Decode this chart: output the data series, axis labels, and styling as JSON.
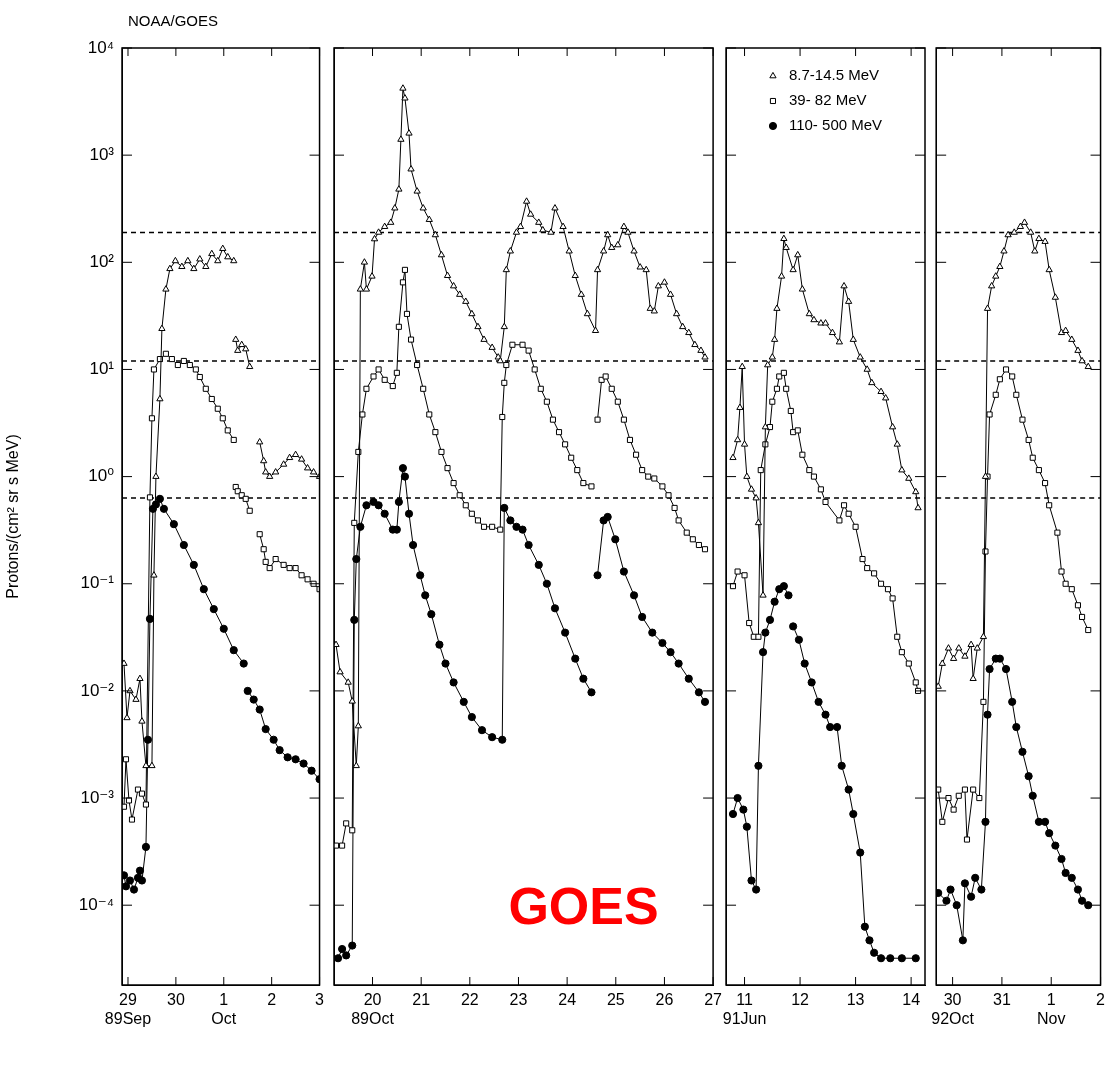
{
  "chart_data": [
    {
      "type": "line",
      "title": "NOAA/GOES",
      "ylabel": "Protons/(cm² sr s MeV)",
      "log": "y",
      "grid": false,
      "legend": false,
      "xlim": [
        "1989-09-28T21:00",
        "1989-10-03T00:00"
      ],
      "xticks": [
        {
          "value": "1989-09-29",
          "label": "29\n89Sep"
        },
        {
          "value": "1989-09-30",
          "label": "30"
        },
        {
          "value": "1989-10-01",
          "label": "1\nOct"
        },
        {
          "value": "1989-10-02",
          "label": "2"
        },
        {
          "value": "1989-10-03",
          "label": "3"
        }
      ],
      "ylim": [
        1.8e-05,
        10000
      ],
      "yticks": [
        {
          "value": 0.0001,
          "label": "10⁻⁴"
        },
        {
          "value": 0.001,
          "label": "10⁻³"
        },
        {
          "value": 0.01,
          "label": "10⁻²"
        },
        {
          "value": 0.1,
          "label": "10⁻¹"
        },
        {
          "value": 1,
          "label": "10⁰"
        },
        {
          "value": 10,
          "label": "10¹"
        },
        {
          "value": 100,
          "label": "10²"
        },
        {
          "value": 1000,
          "label": "10³"
        },
        {
          "value": 10000,
          "label": "10⁴"
        }
      ],
      "ref_lines": [
        {
          "axis": "y",
          "value": 190,
          "line_style": "dashed"
        },
        {
          "axis": "y",
          "value": 12,
          "line_style": "dashed"
        },
        {
          "axis": "y",
          "value": 0.63,
          "line_style": "dashed"
        }
      ],
      "series": [
        {
          "color": "#000000",
          "marker": "triangle",
          "x": [
            "1989-09-28T22:00",
            "1989-09-28T23:30",
            "1989-09-29T01:00",
            "1989-09-29T04:00",
            "1989-09-29T06:00",
            "1989-09-29T07:00",
            "1989-09-29T09:00",
            "1989-09-29T12:00",
            "1989-09-29T13:00",
            "1989-09-29T14:00",
            "1989-09-29T16:00",
            "1989-09-29T17:00",
            "1989-09-29T19:00",
            "1989-09-29T21:00",
            "1989-09-29T23:45",
            "1989-09-30T03:00",
            "1989-09-30T06:00",
            "1989-09-30T09:00",
            "1989-09-30T12:00",
            "1989-09-30T15:00",
            "1989-09-30T18:00",
            "1989-09-30T21:00",
            "1989-09-30T23:30",
            "1989-10-01T02:00",
            "1989-10-01T05:00",
            "1989-10-01T05:30",
            "1989-10-01T06:00",
            "1989-10-01T07:00",
            "1989-10-01T09:00",
            "1989-10-01T11:00",
            "1989-10-01T13:00",
            "1989-10-01T16:00",
            "1989-10-01T18:00",
            "1989-10-01T20:00",
            "1989-10-01T21:00",
            "1989-10-01T23:00",
            "1989-10-02T02:00",
            "1989-10-02T06:00",
            "1989-10-02T09:00",
            "1989-10-02T12:00",
            "1989-10-02T15:00",
            "1989-10-02T18:00",
            "1989-10-02T21:00",
            "1989-10-03T00:00"
          ],
          "values": [
            0.018,
            0.0056,
            0.01,
            0.0083,
            0.013,
            0.0052,
            0.002,
            0.002,
            0.12,
            1.0,
            5.3,
            24,
            56,
            87,
            103,
            91,
            103,
            87,
            107,
            91,
            120,
            103,
            134,
            112,
            103,
            null,
            19,
            15,
            17,
            15.5,
            10.6,
            null,
            2.1,
            1.4,
            1.1,
            1.0,
            1.1,
            1.3,
            1.5,
            1.6,
            1.45,
            1.2,
            1.1,
            1.0
          ]
        },
        {
          "color": "#000000",
          "marker": "square",
          "x": [
            "1989-09-28T22:00",
            "1989-09-28T23:00",
            "1989-09-29T00:30",
            "1989-09-29T02:00",
            "1989-09-29T05:00",
            "1989-09-29T07:00",
            "1989-09-29T09:00",
            "1989-09-29T11:00",
            "1989-09-29T12:00",
            "1989-09-29T13:00",
            "1989-09-29T16:00",
            "1989-09-29T19:00",
            "1989-09-29T22:00",
            "1989-09-30T01:00",
            "1989-09-30T04:00",
            "1989-09-30T07:00",
            "1989-09-30T10:00",
            "1989-09-30T12:00",
            "1989-09-30T15:00",
            "1989-09-30T18:00",
            "1989-09-30T21:00",
            "1989-09-30T23:30",
            "1989-10-01T02:00",
            "1989-10-01T05:00",
            "1989-10-01T05:30",
            "1989-10-01T06:00",
            "1989-10-01T07:00",
            "1989-10-01T09:00",
            "1989-10-01T11:00",
            "1989-10-01T13:00",
            "1989-10-01T16:00",
            "1989-10-01T18:00",
            "1989-10-01T20:00",
            "1989-10-01T21:00",
            "1989-10-01T23:00",
            "1989-10-02T02:00",
            "1989-10-02T06:00",
            "1989-10-02T09:00",
            "1989-10-02T12:00",
            "1989-10-02T15:00",
            "1989-10-02T18:00",
            "1989-10-02T21:00",
            "1989-10-03T00:00"
          ],
          "values": [
            0.00083,
            0.0023,
            0.00095,
            0.00063,
            0.0012,
            0.0011,
            0.00087,
            0.64,
            3.5,
            10,
            12.5,
            14,
            12.5,
            11,
            12,
            11,
            10,
            8.5,
            6.6,
            5.3,
            4.3,
            3.5,
            2.7,
            2.2,
            null,
            0.8,
            0.73,
            0.67,
            0.62,
            0.48,
            null,
            0.29,
            0.21,
            0.16,
            0.14,
            0.17,
            0.15,
            0.14,
            0.14,
            0.12,
            0.11,
            0.1,
            0.089
          ]
        },
        {
          "color": "#000000",
          "marker": "circle",
          "x": [
            "1989-09-28T22:00",
            "1989-09-28T23:00",
            "1989-09-29T01:00",
            "1989-09-29T03:00",
            "1989-09-29T05:00",
            "1989-09-29T06:00",
            "1989-09-29T07:00",
            "1989-09-29T09:00",
            "1989-09-29T10:00",
            "1989-09-29T11:00",
            "1989-09-29T12:30",
            "1989-09-29T14:00",
            "1989-09-29T16:00",
            "1989-09-29T18:00",
            "1989-09-29T23:00",
            "1989-09-30T04:00",
            "1989-09-30T09:00",
            "1989-09-30T14:00",
            "1989-09-30T19:00",
            "1989-10-01T00:00",
            "1989-10-01T05:00",
            "1989-10-01T10:00",
            "1989-10-01T11:00",
            "1989-10-01T12:00",
            "1989-10-01T15:00",
            "1989-10-01T18:00",
            "1989-10-01T21:00",
            "1989-10-02T01:00",
            "1989-10-02T04:00",
            "1989-10-02T08:00",
            "1989-10-02T12:00",
            "1989-10-02T16:00",
            "1989-10-02T20:00",
            "1989-10-03T00:00"
          ],
          "values": [
            0.00019,
            0.00015,
            0.00017,
            0.00014,
            0.00018,
            0.00021,
            0.00017,
            0.00035,
            0.0035,
            0.047,
            0.5,
            0.55,
            0.62,
            0.5,
            0.36,
            0.23,
            0.15,
            0.089,
            0.058,
            0.038,
            0.024,
            0.018,
            null,
            0.01,
            0.0083,
            0.0067,
            0.0044,
            0.0035,
            0.0028,
            0.0024,
            0.0023,
            0.0021,
            0.0018,
            0.0015
          ]
        }
      ]
    },
    {
      "type": "line",
      "log": "y",
      "grid": false,
      "legend": false,
      "tick_labels": "x",
      "annotations": [
        "GOES"
      ],
      "xlim": [
        "1989-10-19T05:00",
        "1989-10-27T00:00"
      ],
      "xticks": [
        {
          "value": "1989-10-20",
          "label": "20\n89Oct"
        },
        {
          "value": "1989-10-21",
          "label": "21"
        },
        {
          "value": "1989-10-22",
          "label": "22"
        },
        {
          "value": "1989-10-23",
          "label": "23"
        },
        {
          "value": "1989-10-24",
          "label": "24"
        },
        {
          "value": "1989-10-25",
          "label": "25"
        },
        {
          "value": "1989-10-26",
          "label": "26"
        },
        {
          "value": "1989-10-27",
          "label": "27"
        }
      ],
      "ylim": [
        1.8e-05,
        10000
      ],
      "yticks": [
        {
          "value": 0.0001,
          "label": null
        },
        {
          "value": 0.001,
          "label": null
        },
        {
          "value": 0.01,
          "label": null
        },
        {
          "value": 0.1,
          "label": null
        },
        {
          "value": 1,
          "label": null
        },
        {
          "value": 10,
          "label": null
        },
        {
          "value": 100,
          "label": null
        },
        {
          "value": 1000,
          "label": null
        },
        {
          "value": 10000,
          "label": null
        }
      ],
      "ref_lines": [
        {
          "axis": "y",
          "value": 190,
          "line_style": "dashed"
        },
        {
          "axis": "y",
          "value": 12,
          "line_style": "dashed"
        },
        {
          "axis": "y",
          "value": 0.63,
          "line_style": "dashed"
        }
      ],
      "series": [
        {
          "color": "#000000",
          "marker": "triangle",
          "x": [
            "1989-10-19T06:00",
            "1989-10-19T08:00",
            "1989-10-19T12:00",
            "1989-10-19T14:00",
            "1989-10-19T16:00",
            "1989-10-19T17:00",
            "1989-10-19T18:00",
            "1989-10-19T20:00",
            "1989-10-19T21:00",
            "1989-10-19T23:45",
            "1989-10-20T01:00",
            "1989-10-20T03:00",
            "1989-10-20T06:00",
            "1989-10-20T09:00",
            "1989-10-20T11:00",
            "1989-10-20T13:00",
            "1989-10-20T14:00",
            "1989-10-20T15:00",
            "1989-10-20T16:00",
            "1989-10-20T18:00",
            "1989-10-20T19:00",
            "1989-10-20T22:00",
            "1989-10-21T01:00",
            "1989-10-21T04:00",
            "1989-10-21T07:00",
            "1989-10-21T10:00",
            "1989-10-21T13:00",
            "1989-10-21T16:00",
            "1989-10-21T19:00",
            "1989-10-21T22:00",
            "1989-10-22T01:00",
            "1989-10-22T04:00",
            "1989-10-22T07:00",
            "1989-10-22T11:00",
            "1989-10-22T14:00",
            "1989-10-22T15:00",
            "1989-10-22T17:00",
            "1989-10-22T18:00",
            "1989-10-22T20:00",
            "1989-10-22T23:00",
            "1989-10-23T01:00",
            "1989-10-23T04:00",
            "1989-10-23T06:00",
            "1989-10-23T10:00",
            "1989-10-23T12:00",
            "1989-10-23T16:00",
            "1989-10-23T18:00",
            "1989-10-23T22:00",
            "1989-10-24T01:00",
            "1989-10-24T04:00",
            "1989-10-24T07:00",
            "1989-10-24T10:00",
            "1989-10-24T14:00",
            "1989-10-24T15:00",
            "1989-10-24T18:00",
            "1989-10-24T20:00",
            "1989-10-24T22:00",
            "1989-10-25T01:00",
            "1989-10-25T04:00",
            "1989-10-25T06:00",
            "1989-10-25T09:00",
            "1989-10-25T12:00",
            "1989-10-25T15:00",
            "1989-10-25T17:00",
            "1989-10-25T19:00",
            "1989-10-25T21:00",
            "1989-10-26T00:00",
            "1989-10-26T03:00",
            "1989-10-26T06:00",
            "1989-10-26T09:00",
            "1989-10-26T12:00",
            "1989-10-26T15:00",
            "1989-10-26T18:00",
            "1989-10-26T20:00"
          ],
          "values": [
            0.027,
            0.015,
            0.012,
            0.008,
            0.002,
            0.0047,
            56,
            100,
            56,
            74,
            165,
            190,
            215,
            235,
            320,
            480,
            1400,
            4200,
            3400,
            1600,
            740,
            460,
            320,
            250,
            180,
            117,
            75,
            60,
            50,
            43,
            33,
            25,
            19,
            16,
            13,
            12,
            25,
            85,
            127,
            190,
            215,
            370,
            280,
            235,
            200,
            190,
            320,
            215,
            127,
            75,
            50,
            33,
            23,
            85,
            127,
            180,
            137,
            145,
            215,
            190,
            127,
            90,
            85,
            37,
            35,
            60,
            65,
            50,
            33,
            25,
            22,
            17,
            15,
            13
          ]
        },
        {
          "color": "#000000",
          "marker": "square",
          "x": [
            "1989-10-19T06:00",
            "1989-10-19T09:00",
            "1989-10-19T11:00",
            "1989-10-19T14:00",
            "1989-10-19T15:00",
            "1989-10-19T17:00",
            "1989-10-19T19:00",
            "1989-10-19T21:00",
            "1989-10-20T00:30",
            "1989-10-20T03:00",
            "1989-10-20T06:00",
            "1989-10-20T10:00",
            "1989-10-20T12:00",
            "1989-10-20T13:00",
            "1989-10-20T15:00",
            "1989-10-20T16:00",
            "1989-10-20T17:00",
            "1989-10-20T19:00",
            "1989-10-20T22:00",
            "1989-10-21T01:00",
            "1989-10-21T04:00",
            "1989-10-21T07:00",
            "1989-10-21T10:00",
            "1989-10-21T13:00",
            "1989-10-21T16:00",
            "1989-10-21T19:00",
            "1989-10-21T22:00",
            "1989-10-22T01:00",
            "1989-10-22T04:00",
            "1989-10-22T07:00",
            "1989-10-22T11:00",
            "1989-10-22T15:00",
            "1989-10-22T16:00",
            "1989-10-22T17:00",
            "1989-10-22T18:00",
            "1989-10-22T21:00",
            "1989-10-23T02:00",
            "1989-10-23T05:00",
            "1989-10-23T08:00",
            "1989-10-23T11:00",
            "1989-10-23T14:00",
            "1989-10-23T17:00",
            "1989-10-23T20:00",
            "1989-10-23T23:00",
            "1989-10-24T02:00",
            "1989-10-24T05:00",
            "1989-10-24T08:00",
            "1989-10-24T12:00",
            "1989-10-24T13:00",
            "1989-10-24T15:00",
            "1989-10-24T17:00",
            "1989-10-24T19:00",
            "1989-10-24T22:00",
            "1989-10-25T01:00",
            "1989-10-25T04:00",
            "1989-10-25T07:00",
            "1989-10-25T10:00",
            "1989-10-25T13:00",
            "1989-10-25T16:00",
            "1989-10-25T19:00",
            "1989-10-25T23:00",
            "1989-10-26T02:00",
            "1989-10-26T05:00",
            "1989-10-26T07:00",
            "1989-10-26T11:00",
            "1989-10-26T14:00",
            "1989-10-26T17:00",
            "1989-10-26T20:00"
          ],
          "values": [
            0.00036,
            0.00036,
            0.00058,
            0.0005,
            0.37,
            1.7,
            3.8,
            6.6,
            8.6,
            10,
            8,
            7,
            9.3,
            25,
            65,
            85,
            33,
            19,
            11,
            6.6,
            3.8,
            2.6,
            1.7,
            1.2,
            0.87,
            0.67,
            0.54,
            0.45,
            0.39,
            0.34,
            0.34,
            0.32,
            3.6,
            7.5,
            11,
            17,
            17,
            15,
            10,
            6.6,
            5,
            3.4,
            2.6,
            2.0,
            1.5,
            1.15,
            0.87,
            0.81,
            null,
            3.4,
            8,
            8.6,
            6.6,
            5,
            3.4,
            2.2,
            1.6,
            1.15,
            1.0,
            0.96,
            0.81,
            0.67,
            0.51,
            0.39,
            0.3,
            0.26,
            0.23,
            0.21
          ]
        },
        {
          "color": "#000000",
          "marker": "circle",
          "x": [
            "1989-10-19T07:00",
            "1989-10-19T09:00",
            "1989-10-19T11:00",
            "1989-10-19T14:00",
            "1989-10-19T15:00",
            "1989-10-19T16:00",
            "1989-10-19T18:00",
            "1989-10-19T21:00",
            "1989-10-20T00:30",
            "1989-10-20T03:00",
            "1989-10-20T06:00",
            "1989-10-20T10:00",
            "1989-10-20T12:00",
            "1989-10-20T13:00",
            "1989-10-20T15:00",
            "1989-10-20T16:00",
            "1989-10-20T18:00",
            "1989-10-20T20:00",
            "1989-10-20T23:30",
            "1989-10-21T02:00",
            "1989-10-21T05:00",
            "1989-10-21T09:00",
            "1989-10-21T12:00",
            "1989-10-21T16:00",
            "1989-10-21T21:00",
            "1989-10-22T01:00",
            "1989-10-22T06:00",
            "1989-10-22T11:00",
            "1989-10-22T16:00",
            "1989-10-22T17:00",
            "1989-10-22T20:00",
            "1989-10-22T23:00",
            "1989-10-23T02:00",
            "1989-10-23T05:00",
            "1989-10-23T10:00",
            "1989-10-23T14:00",
            "1989-10-23T18:00",
            "1989-10-23T23:00",
            "1989-10-24T04:00",
            "1989-10-24T08:00",
            "1989-10-24T12:00",
            "1989-10-24T13:00",
            "1989-10-24T15:00",
            "1989-10-24T18:00",
            "1989-10-24T20:00",
            "1989-10-24T23:45",
            "1989-10-25T04:00",
            "1989-10-25T09:00",
            "1989-10-25T13:00",
            "1989-10-25T18:00",
            "1989-10-25T23:00",
            "1989-10-26T03:00",
            "1989-10-26T07:00",
            "1989-10-26T12:00",
            "1989-10-26T17:00",
            "1989-10-26T20:00"
          ],
          "values": [
            3.2e-05,
            3.9e-05,
            3.4e-05,
            4.2e-05,
            0.046,
            0.17,
            0.34,
            0.54,
            0.58,
            0.54,
            0.45,
            0.32,
            0.32,
            0.58,
            1.2,
            1.0,
            0.45,
            0.23,
            0.12,
            0.078,
            0.052,
            0.027,
            0.018,
            0.012,
            0.0079,
            0.0057,
            0.0043,
            0.0037,
            0.0035,
            0.51,
            0.39,
            0.34,
            0.32,
            0.23,
            0.15,
            0.1,
            0.059,
            0.035,
            0.02,
            0.013,
            0.0097,
            null,
            0.12,
            0.39,
            0.42,
            0.26,
            0.13,
            0.078,
            0.049,
            0.035,
            0.028,
            0.023,
            0.018,
            0.013,
            0.0097,
            0.0079
          ]
        }
      ]
    },
    {
      "type": "line",
      "log": "y",
      "grid": false,
      "legend": "top",
      "tick_labels": "x",
      "xlim": [
        "1991-06-10T16:00",
        "1991-06-14T06:00"
      ],
      "xticks": [
        {
          "value": "1991-06-11",
          "label": "11\n91Jun"
        },
        {
          "value": "1991-06-12",
          "label": "12"
        },
        {
          "value": "1991-06-13",
          "label": "13"
        },
        {
          "value": "1991-06-14",
          "label": "14"
        }
      ],
      "ylim": [
        1.8e-05,
        10000
      ],
      "yticks": [
        {
          "value": 0.0001,
          "label": null
        },
        {
          "value": 0.001,
          "label": null
        },
        {
          "value": 0.01,
          "label": null
        },
        {
          "value": 0.1,
          "label": null
        },
        {
          "value": 1,
          "label": null
        },
        {
          "value": 10,
          "label": null
        },
        {
          "value": 100,
          "label": null
        },
        {
          "value": 1000,
          "label": null
        },
        {
          "value": 10000,
          "label": null
        }
      ],
      "ref_lines": [
        {
          "axis": "y",
          "value": 190,
          "line_style": "dashed"
        },
        {
          "axis": "y",
          "value": 12,
          "line_style": "dashed"
        },
        {
          "axis": "y",
          "value": 0.63,
          "line_style": "dashed"
        }
      ],
      "series": [
        {
          "name": "8.7-14.5 MeV",
          "color": "#000000",
          "marker": "triangle",
          "x": [
            "1991-06-10T19:00",
            "1991-06-10T21:00",
            "1991-06-10T22:00",
            "1991-06-10T23:00",
            "1991-06-11T00:00",
            "1991-06-11T01:00",
            "1991-06-11T03:00",
            "1991-06-11T05:00",
            "1991-06-11T06:00",
            "1991-06-11T08:00",
            "1991-06-11T09:00",
            "1991-06-11T10:00",
            "1991-06-11T12:00",
            "1991-06-11T13:00",
            "1991-06-11T14:00",
            "1991-06-11T16:00",
            "1991-06-11T17:00",
            "1991-06-11T18:00",
            "1991-06-11T21:00",
            "1991-06-11T23:00",
            "1991-06-12T01:00",
            "1991-06-12T04:00",
            "1991-06-12T06:00",
            "1991-06-12T09:00",
            "1991-06-12T11:00",
            "1991-06-12T14:00",
            "1991-06-12T17:00",
            "1991-06-12T19:00",
            "1991-06-12T21:00",
            "1991-06-12T23:00",
            "1991-06-13T02:00",
            "1991-06-13T05:00",
            "1991-06-13T07:00",
            "1991-06-13T11:00",
            "1991-06-13T13:00",
            "1991-06-13T16:00",
            "1991-06-13T18:00",
            "1991-06-13T20:00",
            "1991-06-13T23:00",
            "1991-06-14T02:00",
            "1991-06-14T03:00"
          ],
          "values": [
            1.5,
            2.2,
            4.4,
            10.6,
            2.0,
            1.0,
            0.76,
            0.63,
            0.37,
            0.078,
            2.9,
            11,
            13,
            19,
            37,
            74,
            166,
            137,
            85,
            117,
            56,
            33,
            29,
            27,
            27,
            22,
            18,
            60,
            43,
            19,
            13,
            10,
            7.5,
            6.2,
            5.4,
            2.9,
            2.0,
            1.15,
            0.96,
            0.72,
            0.51
          ]
        },
        {
          "name": "39- 82 MeV",
          "color": "#000000",
          "marker": "square",
          "x": [
            "1991-06-10T19:00",
            "1991-06-10T21:00",
            "1991-06-11T00:00",
            "1991-06-11T02:00",
            "1991-06-11T04:00",
            "1991-06-11T06:00",
            "1991-06-11T07:00",
            "1991-06-11T09:00",
            "1991-06-11T11:00",
            "1991-06-11T12:00",
            "1991-06-11T14:00",
            "1991-06-11T15:00",
            "1991-06-11T17:00",
            "1991-06-11T18:00",
            "1991-06-11T20:00",
            "1991-06-11T21:00",
            "1991-06-11T23:00",
            "1991-06-12T01:00",
            "1991-06-12T04:00",
            "1991-06-12T06:00",
            "1991-06-12T09:00",
            "1991-06-12T11:00",
            "1991-06-12T17:00",
            "1991-06-12T19:00",
            "1991-06-12T21:00",
            "1991-06-13T00:00",
            "1991-06-13T03:00",
            "1991-06-13T05:00",
            "1991-06-13T08:00",
            "1991-06-13T11:00",
            "1991-06-13T14:00",
            "1991-06-13T16:00",
            "1991-06-13T18:00",
            "1991-06-13T20:00",
            "1991-06-13T23:00",
            "1991-06-14T02:00",
            "1991-06-14T03:00"
          ],
          "values": [
            0.095,
            0.13,
            0.12,
            0.043,
            0.032,
            0.032,
            1.15,
            2.0,
            2.9,
            5,
            6.6,
            8.6,
            9.3,
            6.6,
            4.1,
            2.6,
            2.7,
            1.6,
            1.15,
            1.0,
            0.76,
            0.58,
            0.39,
            0.54,
            0.45,
            0.34,
            0.17,
            0.14,
            0.125,
            0.1,
            0.089,
            0.073,
            0.032,
            0.023,
            0.018,
            0.012,
            0.01
          ]
        },
        {
          "name": "110- 500 MeV",
          "color": "#000000",
          "marker": "circle",
          "x": [
            "1991-06-10T19:00",
            "1991-06-10T21:00",
            "1991-06-10T23:30",
            "1991-06-11T01:00",
            "1991-06-11T03:00",
            "1991-06-11T05:00",
            "1991-06-11T06:00",
            "1991-06-11T08:00",
            "1991-06-11T09:00",
            "1991-06-11T11:00",
            "1991-06-11T13:00",
            "1991-06-11T15:00",
            "1991-06-11T17:00",
            "1991-06-11T19:00",
            "1991-06-11T20:00",
            "1991-06-11T21:00",
            "1991-06-11T23:30",
            "1991-06-12T02:00",
            "1991-06-12T05:00",
            "1991-06-12T08:00",
            "1991-06-12T11:00",
            "1991-06-12T13:00",
            "1991-06-12T16:00",
            "1991-06-12T18:00",
            "1991-06-12T21:00",
            "1991-06-12T23:00",
            "1991-06-13T02:00",
            "1991-06-13T04:00",
            "1991-06-13T06:00",
            "1991-06-13T08:00",
            "1991-06-13T11:00",
            "1991-06-13T15:00",
            "1991-06-13T20:00",
            "1991-06-14T02:00"
          ],
          "values": [
            0.00071,
            0.001,
            0.00078,
            0.00054,
            0.00017,
            0.00014,
            0.002,
            0.023,
            0.035,
            0.046,
            0.068,
            0.089,
            0.095,
            0.078,
            null,
            0.04,
            0.03,
            0.018,
            0.012,
            0.0079,
            0.006,
            0.0046,
            0.0046,
            0.002,
            0.0012,
            0.00071,
            0.00031,
            6.3e-05,
            4.7e-05,
            3.6e-05,
            3.2e-05,
            3.2e-05,
            3.2e-05,
            3.2e-05
          ]
        }
      ]
    },
    {
      "type": "line",
      "log": "y",
      "grid": false,
      "legend": false,
      "tick_labels": "x",
      "xlim": [
        "1992-10-29T16:00",
        "1992-11-02T00:00"
      ],
      "xticks": [
        {
          "value": "1992-10-30",
          "label": "30\n92Oct"
        },
        {
          "value": "1992-10-31",
          "label": "31"
        },
        {
          "value": "1992-11-01",
          "label": "1\nNov"
        },
        {
          "value": "1992-11-02",
          "label": "2"
        }
      ],
      "ylim": [
        1.8e-05,
        10000
      ],
      "yticks": [
        {
          "value": 0.0001,
          "label": null
        },
        {
          "value": 0.001,
          "label": null
        },
        {
          "value": 0.01,
          "label": null
        },
        {
          "value": 0.1,
          "label": null
        },
        {
          "value": 1,
          "label": null
        },
        {
          "value": 10,
          "label": null
        },
        {
          "value": 100,
          "label": null
        },
        {
          "value": 1000,
          "label": null
        },
        {
          "value": 10000,
          "label": null
        }
      ],
      "ref_lines": [
        {
          "axis": "y",
          "value": 190,
          "line_style": "dashed"
        },
        {
          "axis": "y",
          "value": 12,
          "line_style": "dashed"
        },
        {
          "axis": "y",
          "value": 0.63,
          "line_style": "dashed"
        }
      ],
      "series": [
        {
          "color": "#000000",
          "marker": "triangle",
          "x": [
            "1992-10-29T17:00",
            "1992-10-29T19:00",
            "1992-10-29T22:00",
            "1992-10-30T00:30",
            "1992-10-30T03:00",
            "1992-10-30T06:00",
            "1992-10-30T09:00",
            "1992-10-30T10:00",
            "1992-10-30T12:00",
            "1992-10-30T15:00",
            "1992-10-30T16:00",
            "1992-10-30T17:00",
            "1992-10-30T19:00",
            "1992-10-30T21:00",
            "1992-10-30T23:00",
            "1992-10-31T01:00",
            "1992-10-31T03:00",
            "1992-10-31T06:00",
            "1992-10-31T09:00",
            "1992-10-31T11:00",
            "1992-10-31T14:00",
            "1992-10-31T16:00",
            "1992-10-31T18:00",
            "1992-10-31T21:00",
            "1992-10-31T23:00",
            "1992-11-01T02:00",
            "1992-11-01T05:00",
            "1992-11-01T07:00",
            "1992-11-01T10:00",
            "1992-11-01T13:00",
            "1992-11-01T15:00",
            "1992-11-01T18:00"
          ],
          "values": [
            0.011,
            0.018,
            0.025,
            0.02,
            0.025,
            0.021,
            0.027,
            0.013,
            0.025,
            0.032,
            1.0,
            37,
            60,
            74,
            91,
            127,
            180,
            190,
            215,
            235,
            190,
            127,
            166,
            156,
            85,
            47,
            22,
            23,
            19,
            15,
            12,
            10.6
          ]
        },
        {
          "color": "#000000",
          "marker": "square",
          "x": [
            "1992-10-29T17:00",
            "1992-10-29T19:00",
            "1992-10-29T22:00",
            "1992-10-30T00:30",
            "1992-10-30T03:00",
            "1992-10-30T06:00",
            "1992-10-30T07:00",
            "1992-10-30T10:00",
            "1992-10-30T13:00",
            "1992-10-30T15:00",
            "1992-10-30T16:00",
            "1992-10-30T17:00",
            "1992-10-30T18:00",
            "1992-10-30T21:00",
            "1992-10-30T23:00",
            "1992-10-31T02:00",
            "1992-10-31T05:00",
            "1992-10-31T07:00",
            "1992-10-31T10:00",
            "1992-10-31T13:00",
            "1992-10-31T15:00",
            "1992-10-31T18:00",
            "1992-10-31T21:00",
            "1992-10-31T23:00",
            "1992-11-01T03:00",
            "1992-11-01T05:00",
            "1992-11-01T07:00",
            "1992-11-01T10:00",
            "1992-11-01T13:00",
            "1992-11-01T15:00",
            "1992-11-01T18:00"
          ],
          "values": [
            0.0012,
            0.0006,
            0.001,
            0.00078,
            0.00105,
            0.0012,
            0.00041,
            0.0012,
            0.001,
            0.0079,
            0.2,
            1.0,
            3.8,
            5.8,
            8.1,
            10,
            8.6,
            5.8,
            3.4,
            2.2,
            1.5,
            1.15,
            0.87,
            0.54,
            0.3,
            0.13,
            0.1,
            0.089,
            0.063,
            0.049,
            0.037
          ]
        },
        {
          "color": "#000000",
          "marker": "circle",
          "x": [
            "1992-10-29T17:00",
            "1992-10-29T21:00",
            "1992-10-29T23:00",
            "1992-10-30T02:00",
            "1992-10-30T05:00",
            "1992-10-30T06:00",
            "1992-10-30T09:00",
            "1992-10-30T11:00",
            "1992-10-30T14:00",
            "1992-10-30T16:00",
            "1992-10-30T17:00",
            "1992-10-30T18:00",
            "1992-10-30T21:00",
            "1992-10-30T23:00",
            "1992-10-31T02:00",
            "1992-10-31T05:00",
            "1992-10-31T07:00",
            "1992-10-31T10:00",
            "1992-10-31T13:00",
            "1992-10-31T15:00",
            "1992-10-31T18:00",
            "1992-10-31T21:00",
            "1992-10-31T23:00",
            "1992-11-01T02:00",
            "1992-11-01T05:00",
            "1992-11-01T07:00",
            "1992-11-01T10:00",
            "1992-11-01T13:00",
            "1992-11-01T15:00",
            "1992-11-01T18:00"
          ],
          "values": [
            0.00013,
            0.00011,
            0.00014,
            0.0001,
            4.7e-05,
            0.00016,
            0.00012,
            0.00018,
            0.00014,
            0.0006,
            0.006,
            0.016,
            0.02,
            0.02,
            0.016,
            0.0079,
            0.0046,
            0.0027,
            0.0016,
            0.00105,
            0.0006,
            0.0006,
            0.00047,
            0.00036,
            0.00027,
            0.0002,
            0.00018,
            0.00014,
            0.00011,
            0.0001
          ]
        }
      ]
    }
  ]
}
